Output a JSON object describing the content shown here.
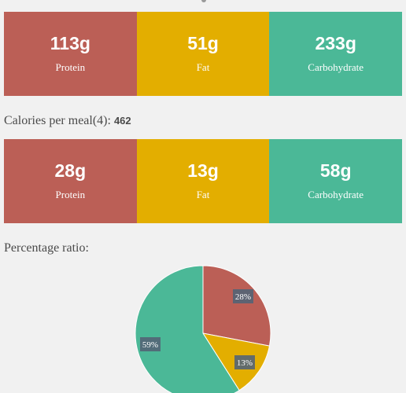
{
  "daily": {
    "protein": {
      "value": "113g",
      "label": "Protein",
      "color": "#bb5f56"
    },
    "fat": {
      "value": "51g",
      "label": "Fat",
      "color": "#e3ae00"
    },
    "carbohydrate": {
      "value": "233g",
      "label": "Carbohydrate",
      "color": "#4bb897"
    }
  },
  "meal": {
    "heading": "Calories per meal(4): ",
    "calories": "462",
    "protein": {
      "value": "28g",
      "label": "Protein"
    },
    "fat": {
      "value": "13g",
      "label": "Fat"
    },
    "carbohydrate": {
      "value": "58g",
      "label": "Carbohydrate"
    }
  },
  "ratio": {
    "heading": "Percentage ratio:"
  },
  "chart_data": {
    "type": "pie",
    "slices": [
      {
        "name": "Protein",
        "value": 28,
        "label": "28%",
        "color": "#bb5f56"
      },
      {
        "name": "Fat",
        "value": 13,
        "label": "13%",
        "color": "#e3ae00"
      },
      {
        "name": "Carbohydrate",
        "value": 59,
        "label": "59%",
        "color": "#4bb897"
      }
    ]
  }
}
